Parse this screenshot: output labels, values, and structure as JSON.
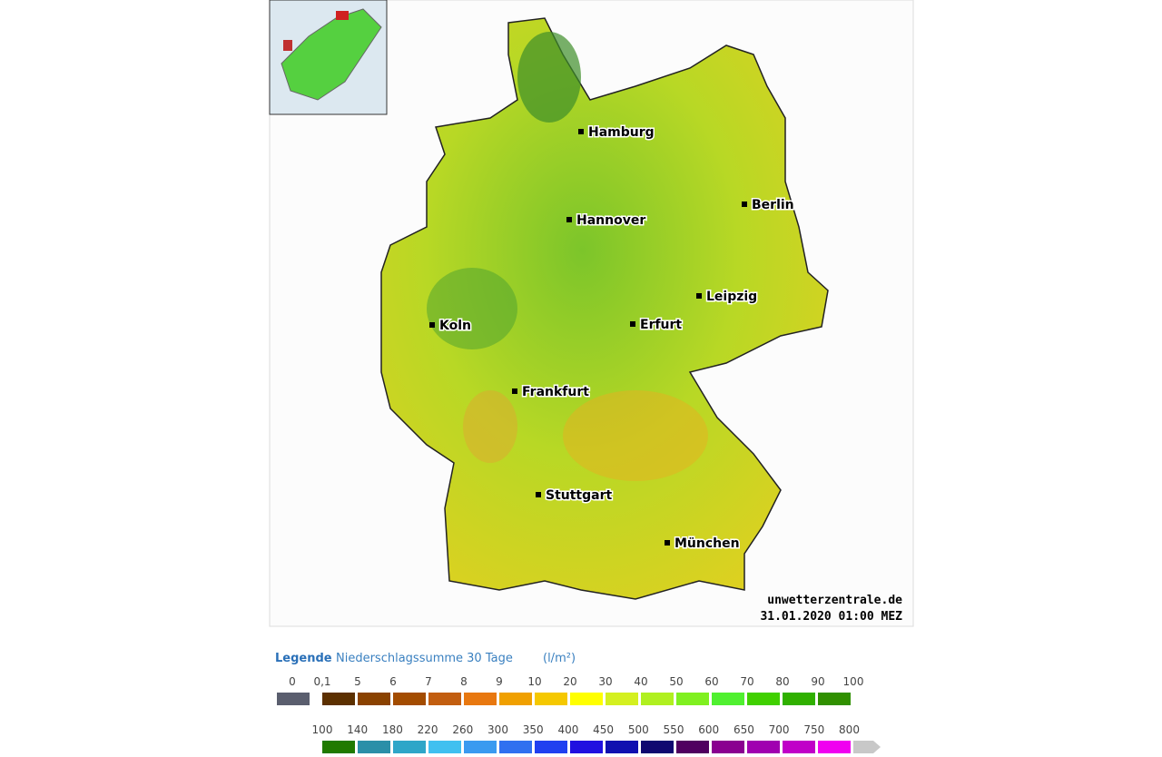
{
  "map": {
    "cities": [
      "Hamburg",
      "Berlin",
      "Hannover",
      "Leipzig",
      "Koln",
      "Erfurt",
      "Frankfurt",
      "Stuttgart",
      "München"
    ],
    "source": "unwetterzentrale.de",
    "timestamp": "31.01.2020 01:00 MEZ"
  },
  "legend": {
    "title": "Legende",
    "subtitle": "Niederschlagssumme 30 Tage",
    "unit": "(l/m²)",
    "row1": {
      "labels": [
        "0",
        "0,1",
        "5",
        "6",
        "7",
        "8",
        "9",
        "10",
        "20",
        "30",
        "40",
        "50",
        "60",
        "70",
        "80",
        "90",
        "100"
      ],
      "colors": [
        "#5a5e6e",
        "#5c3000",
        "#8a4200",
        "#a34c00",
        "#c25e10",
        "#e87810",
        "#f0a000",
        "#f5c800",
        "#ffff00",
        "#d4f020",
        "#b0f020",
        "#80f020",
        "#50f030",
        "#40d000",
        "#30b000",
        "#309000"
      ]
    },
    "row2": {
      "labels": [
        "100",
        "140",
        "180",
        "220",
        "260",
        "300",
        "350",
        "400",
        "450",
        "500",
        "550",
        "600",
        "650",
        "700",
        "750",
        "800"
      ],
      "colors": [
        "#207a00",
        "#2b8fa8",
        "#2ea6c8",
        "#40c0f0",
        "#3a9af0",
        "#3070f0",
        "#2040f0",
        "#2010e0",
        "#1010b0",
        "#100870",
        "#500060",
        "#8a0090",
        "#a000b0",
        "#c000c8",
        "#f000f0",
        "#c8c8c8"
      ]
    }
  }
}
